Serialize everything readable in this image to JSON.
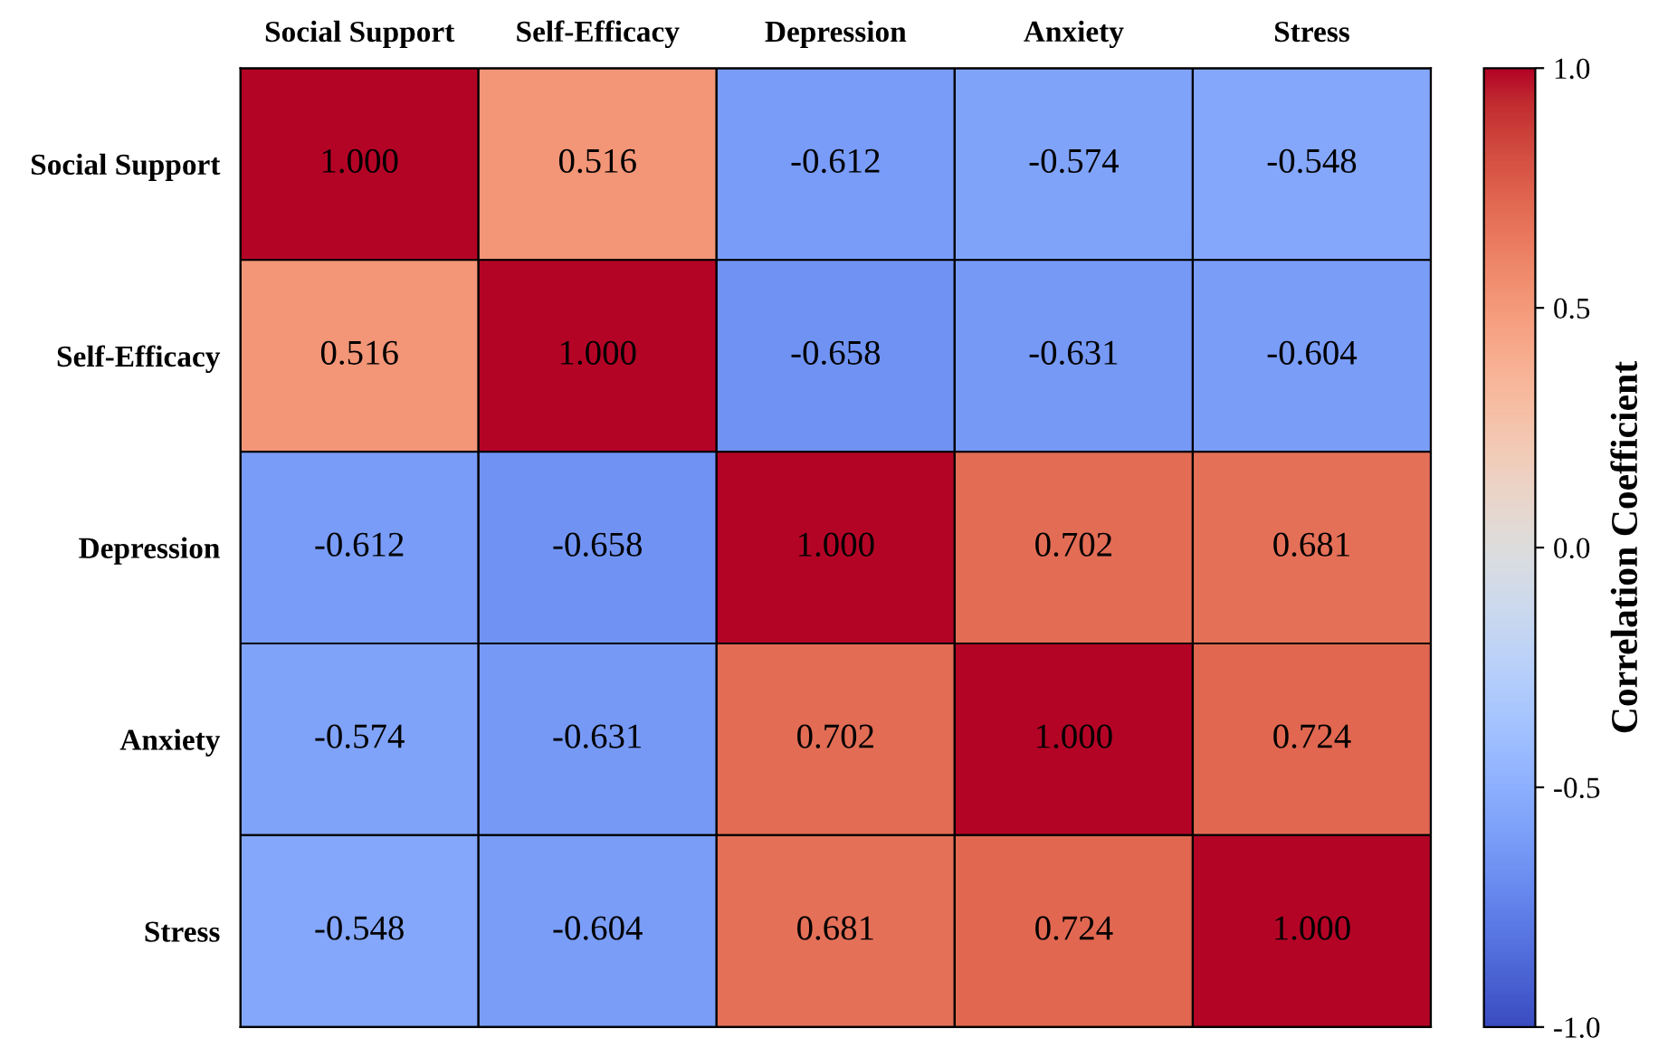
{
  "chart_data": {
    "type": "heatmap",
    "clabel": "Correlation Coefficient",
    "categories": [
      "Social Support",
      "Self-Efficacy",
      "Depression",
      "Anxiety",
      "Stress"
    ],
    "y_categories": [
      "Social Support",
      "Self-Efficacy",
      "Depression",
      "Anxiety",
      "Stress"
    ],
    "cells": [
      [
        1.0,
        0.516,
        -0.612,
        -0.574,
        -0.548
      ],
      [
        0.516,
        1.0,
        -0.658,
        -0.631,
        -0.604
      ],
      [
        -0.612,
        -0.658,
        1.0,
        0.702,
        0.681
      ],
      [
        -0.574,
        -0.631,
        0.702,
        1.0,
        0.724
      ],
      [
        -0.548,
        -0.604,
        0.681,
        0.724,
        1.0
      ]
    ],
    "cell_labels": [
      [
        "1.000",
        "0.516",
        "-0.612",
        "-0.574",
        "-0.548"
      ],
      [
        "0.516",
        "1.000",
        "-0.658",
        "-0.631",
        "-0.604"
      ],
      [
        "-0.612",
        "-0.658",
        "1.000",
        "0.702",
        "0.681"
      ],
      [
        "-0.574",
        "-0.631",
        "0.702",
        "1.000",
        "0.724"
      ],
      [
        "-0.548",
        "-0.604",
        "0.681",
        "0.724",
        "1.000"
      ]
    ],
    "clim": [
      -1.0,
      1.0
    ],
    "cticks": [
      {
        "value": -1.0,
        "label": "-1.0"
      },
      {
        "value": -0.5,
        "label": "-0.5"
      },
      {
        "value": 0.0,
        "label": "0.0"
      },
      {
        "value": 0.5,
        "label": "0.5"
      },
      {
        "value": 1.0,
        "label": "1.0"
      }
    ]
  }
}
